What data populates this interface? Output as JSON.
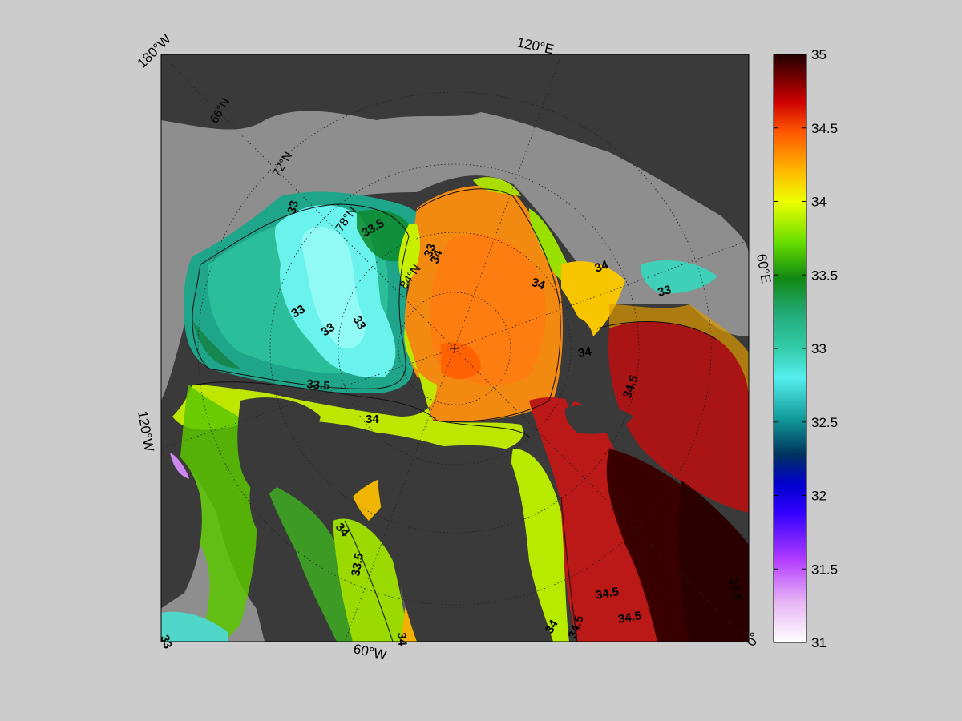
{
  "map": {
    "colors": {
      "figure_bg": "#cccccc",
      "land": "#3a3a3a",
      "shelf": "#8e8e8e"
    },
    "lon_labels": [
      "180°W",
      "120°E",
      "60°E",
      "120°W",
      "60°W",
      "0°"
    ],
    "lat_labels": [
      "66°N",
      "72°N",
      "78°N",
      "84°N"
    ],
    "contour_labels": [
      "33",
      "33.5",
      "33",
      "33",
      "33",
      "33.5",
      "34",
      "33",
      "34",
      "34",
      "34",
      "33",
      "34",
      "34.5",
      "34",
      "33.5",
      "34",
      "34",
      "34.5",
      "34.5",
      "34.5",
      "34.5",
      "33"
    ]
  },
  "colorbar": {
    "min": 31,
    "max": 35,
    "ticks": [
      "35",
      "34.5",
      "34",
      "33.5",
      "33",
      "32.5",
      "32",
      "31.5",
      "31"
    ],
    "stops": [
      "#ffffff",
      "#d98cf2",
      "#9900ff",
      "#0000dd",
      "#00335e",
      "#119999",
      "#66ffff",
      "#22aa77",
      "#118811",
      "#77ee00",
      "#ffff00",
      "#ff9900",
      "#ee2200",
      "#990000",
      "#330000"
    ]
  }
}
